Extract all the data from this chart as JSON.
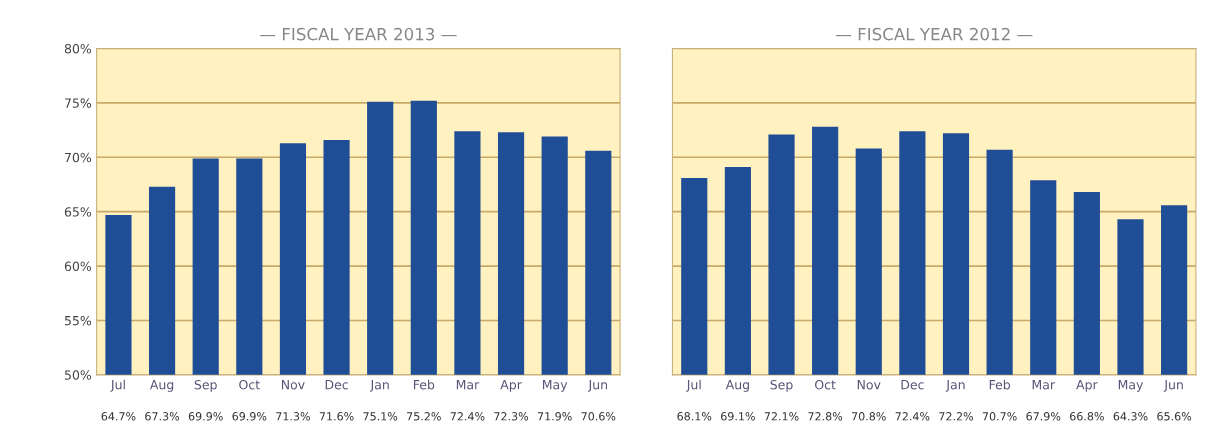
{
  "chart_data": [
    {
      "type": "bar",
      "title": "— FISCAL YEAR 2013 —",
      "categories": [
        "Jul",
        "Aug",
        "Sep",
        "Oct",
        "Nov",
        "Dec",
        "Jan",
        "Feb",
        "Mar",
        "Apr",
        "May",
        "Jun"
      ],
      "values": [
        64.7,
        67.3,
        69.9,
        69.9,
        71.3,
        71.6,
        75.1,
        75.2,
        72.4,
        72.3,
        71.9,
        70.6
      ],
      "value_labels": [
        "64.7%",
        "67.3%",
        "69.9%",
        "69.9%",
        "71.3%",
        "71.6%",
        "75.1%",
        "75.2%",
        "72.4%",
        "72.3%",
        "71.9%",
        "70.6%"
      ],
      "color": "#1f4e97",
      "ylim": [
        50,
        80
      ],
      "yticks": [
        {
          "value": 50,
          "label": "50%"
        },
        {
          "value": 55,
          "label": "55%"
        },
        {
          "value": 60,
          "label": "60%"
        },
        {
          "value": 65,
          "label": "65%"
        },
        {
          "value": 70,
          "label": "70%"
        },
        {
          "value": 75,
          "label": "75%"
        },
        {
          "value": 80,
          "label": "80%"
        }
      ],
      "grid": "y"
    },
    {
      "type": "bar",
      "title": "— FISCAL YEAR 2012 —",
      "categories": [
        "Jul",
        "Aug",
        "Sep",
        "Oct",
        "Nov",
        "Dec",
        "Jan",
        "Feb",
        "Mar",
        "Apr",
        "May",
        "Jun"
      ],
      "values": [
        68.1,
        69.1,
        72.1,
        72.8,
        70.8,
        72.4,
        72.2,
        70.7,
        67.9,
        66.8,
        64.3,
        65.6
      ],
      "value_labels": [
        "68.1%",
        "69.1%",
        "72.1%",
        "72.8%",
        "70.8%",
        "72.4%",
        "72.2%",
        "70.7%",
        "67.9%",
        "66.8%",
        "64.3%",
        "65.6%"
      ],
      "color": "#1f4e97",
      "ylim": [
        50,
        80
      ],
      "yticks": [
        {
          "value": 50,
          "label": null
        },
        {
          "value": 55,
          "label": null
        },
        {
          "value": 60,
          "label": null
        },
        {
          "value": 65,
          "label": null
        },
        {
          "value": 70,
          "label": null
        },
        {
          "value": 75,
          "label": null
        },
        {
          "value": 80,
          "label": null
        }
      ],
      "grid": "y"
    }
  ]
}
